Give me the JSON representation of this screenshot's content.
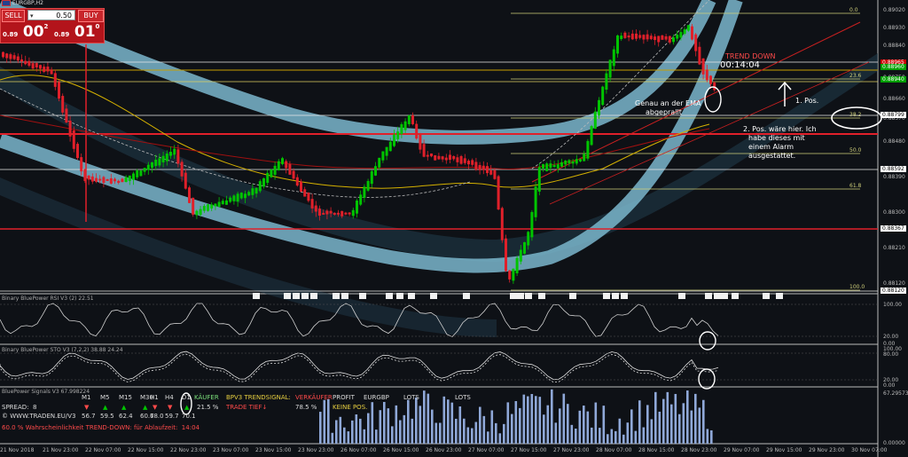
{
  "window": {
    "symbol_title": "EURGBP,H2",
    "flag_icon": "uk-flag-icon"
  },
  "trade_panel": {
    "sell_label": "SELL",
    "buy_label": "BUY",
    "lots_value": "0.50",
    "sell_price_small": "0.89",
    "sell_price_big": "00",
    "sell_price_sup": "2",
    "buy_price_small": "0.89",
    "buy_price_big": "01",
    "buy_price_sup": "0",
    "color": "#b3141b"
  },
  "price_axis": {
    "labels": [
      "0.89020",
      "0.88930",
      "0.88840",
      "0.88750",
      "0.88660",
      "0.88570",
      "0.88480",
      "0.88390",
      "0.88300",
      "0.88210",
      "0.88120"
    ],
    "marked": [
      {
        "value": "0.88965",
        "color": "#c80000"
      },
      {
        "value": "0.88960",
        "color": "#00a000"
      },
      {
        "value": "0.88940",
        "color": "#00a000"
      },
      {
        "value": "0.88799",
        "color": "#ffffff"
      },
      {
        "value": "0.88592",
        "color": "#ffffff"
      },
      {
        "value": "0.88367",
        "color": "#ffffff"
      },
      {
        "value": "0.88120",
        "color": "#ffffff"
      }
    ]
  },
  "fib_levels": [
    "0.0",
    "23.6",
    "38.2",
    "50.0",
    "61.8",
    "100.0"
  ],
  "chart_overlay": {
    "trend_label": "TREND DOWN",
    "countdown": "00:14:04",
    "note_ema": [
      "Genau an der EMA",
      "abgeprallt"
    ],
    "note_first_pos": "1. Pos.",
    "note_second_pos": [
      "2. Pos. wäre hier. Ich",
      "habe dieses mit",
      "einem Alarm",
      "ausgestattet."
    ]
  },
  "time_axis": [
    "21 Nov 2018",
    "21 Nov 23:00",
    "22 Nov 07:00",
    "22 Nov 15:00",
    "22 Nov 23:00",
    "23 Nov 07:00",
    "23 Nov 15:00",
    "23 Nov 23:00",
    "26 Nov 07:00",
    "26 Nov 15:00",
    "26 Nov 23:00",
    "27 Nov 07:00",
    "27 Nov 15:00",
    "27 Nov 23:00",
    "28 Nov 07:00",
    "28 Nov 15:00",
    "28 Nov 23:00",
    "29 Nov 07:00",
    "29 Nov 15:00",
    "29 Nov 23:00",
    "30 Nov 07:00"
  ],
  "indicators": {
    "rsi_title": "Binary BluePower RSI V3 (2) 22.51",
    "rsi_levels": [
      "100.00",
      "20.00",
      "0.00"
    ],
    "sto_title": "Binary BluePower STO V3 (7,2,2) 38.88 24.24",
    "sto_levels": [
      "100.00",
      "80.00",
      "20.00",
      "0.00"
    ],
    "vol_title": "BluePower Signals V3 67.998224",
    "vol_levels": [
      "67.2957348",
      "0.00000"
    ]
  },
  "signal_panel": {
    "timeframes": [
      "M1",
      "M5",
      "M15",
      "M30",
      "H1",
      "H4",
      "D1"
    ],
    "values": [
      "56.7",
      "59.5",
      "62.4",
      "60.7",
      "68.0",
      "59.7",
      "70.1"
    ],
    "kaeufer_label": "KÄUFER",
    "kaeufer_value": "21.5 %",
    "trend_label": "BPV3 TRENDSIGNAL:",
    "trend_value": "TRADE TIEF↓",
    "verkaeufer_label": "VERKÄUFER",
    "verkaeufer_value": "78.5 %",
    "profit_label": "PROFIT",
    "keine_pos": "KEINE POS.",
    "symbol": "EURGBP",
    "lots1": "LOTS",
    "lots2": "LOTS",
    "spread_label": "SPREAD:",
    "spread_value": "8",
    "website": "© WWW.TRADEN.EU/V3",
    "footer_msg": "60.0 % Wahrscheinlichkeit TREND-DOWN: für Ablaufzeit:",
    "footer_time": "14:04"
  },
  "colors": {
    "bull": "#00c400",
    "bear": "#e0202a",
    "channel": "#7ab6cc",
    "fib": "#cfcf7a",
    "accent_red": "#ff4a4a"
  }
}
